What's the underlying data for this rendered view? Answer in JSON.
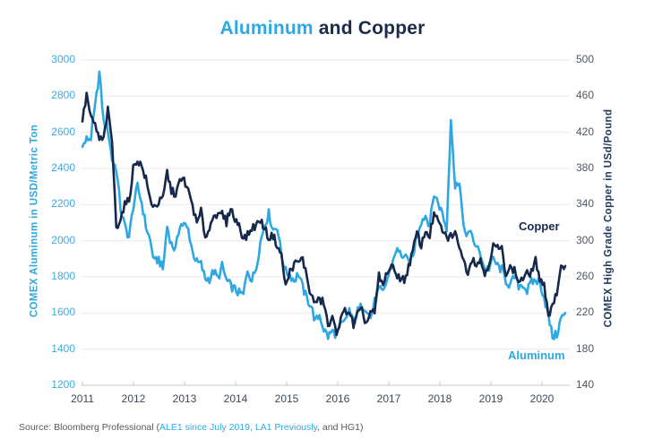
{
  "title": {
    "aluminum_part": "Aluminum",
    "rest_part": " and Copper"
  },
  "source": {
    "prefix": "Source: Bloomberg Professional (",
    "highlight": "ALE1 since July 2019, LA1 Previously",
    "suffix": ", and HG1)"
  },
  "colors": {
    "aluminum_blue": "#2FA8E1",
    "copper_navy": "#16294C",
    "title_navy": "#1B2B4D",
    "left_tick_blue": "#41A9E1",
    "right_tick_gray": "#4D5766",
    "year_tick_gray": "#3E4957",
    "gridline": "#E8E9EA",
    "axis_line": "#D2D4D6",
    "source_gray": "#58595B"
  },
  "chart_data": {
    "type": "line",
    "title": "Aluminum and Copper",
    "grid": "horizontal gridlines only, light gray",
    "legend_position": "inline annotations at right of plot (Copper upper, Aluminum lower)",
    "x_axis": {
      "tick_years": [
        2011,
        2012,
        2013,
        2014,
        2015,
        2016,
        2017,
        2018,
        2019,
        2020
      ],
      "start": "2011-01",
      "end": "2020-07",
      "interval": "monthly"
    },
    "left_axis": {
      "label": "COMEX Aluminum in USD/Metric Ton",
      "ticks": [
        3000,
        2800,
        2600,
        2400,
        2200,
        2000,
        1800,
        1600,
        1400,
        1200
      ],
      "range": [
        1200,
        3000
      ]
    },
    "right_axis": {
      "label": "COMEX High Grade Copper in USd/Pound",
      "ticks": [
        500,
        460,
        420,
        380,
        340,
        300,
        260,
        220,
        180,
        140
      ],
      "range": [
        140,
        500
      ]
    },
    "series": [
      {
        "name": "Aluminum",
        "axis": "left",
        "unit": "USD/Metric Ton",
        "color": "#2FA8E1",
        "values_monthly": [
          2520,
          2560,
          2570,
          2740,
          2930,
          2660,
          2620,
          2450,
          2400,
          2180,
          2080,
          2020,
          2190,
          2300,
          2210,
          2080,
          2000,
          1880,
          1900,
          1840,
          2080,
          1980,
          1950,
          2090,
          2090,
          2060,
          1940,
          1880,
          1870,
          1790,
          1790,
          1830,
          1790,
          1860,
          1780,
          1750,
          1730,
          1710,
          1700,
          1840,
          1780,
          1850,
          1990,
          2090,
          2150,
          2060,
          2080,
          1920,
          1830,
          1810,
          1780,
          1820,
          1740,
          1680,
          1640,
          1550,
          1590,
          1510,
          1470,
          1500,
          1480,
          1530,
          1550,
          1620,
          1540,
          1610,
          1640,
          1630,
          1570,
          1660,
          1730,
          1710,
          1790,
          1860,
          1950,
          1930,
          1910,
          1880,
          1910,
          2040,
          2110,
          2140,
          2090,
          2260,
          2210,
          2150,
          2060,
          2690,
          2290,
          2340,
          2060,
          2040,
          2030,
          1960,
          1930,
          1840,
          1850,
          1900,
          1860,
          1840,
          1780,
          1750,
          1800,
          1750,
          1760,
          1720,
          1770,
          1780,
          1770,
          1690,
          1580,
          1470,
          1480,
          1570,
          1600
        ]
      },
      {
        "name": "Copper",
        "axis": "right",
        "unit": "USd/Pound",
        "color": "#16294C",
        "values_monthly": [
          432,
          462,
          435,
          428,
          412,
          412,
          444,
          410,
          315,
          325,
          340,
          344,
          380,
          390,
          382,
          368,
          345,
          338,
          342,
          346,
          376,
          355,
          352,
          365,
          368,
          354,
          340,
          318,
          332,
          305,
          312,
          332,
          326,
          330,
          320,
          338,
          322,
          319,
          302,
          306,
          314,
          317,
          323,
          314,
          303,
          306,
          295,
          283,
          249,
          266,
          274,
          276,
          280,
          260,
          238,
          232,
          234,
          232,
          205,
          213,
          200,
          212,
          223,
          222,
          206,
          219,
          222,
          208,
          221,
          220,
          261,
          250,
          267,
          271,
          264,
          259,
          256,
          271,
          288,
          309,
          294,
          311,
          306,
          330,
          320,
          312,
          302,
          306,
          307,
          296,
          277,
          266,
          281,
          275,
          278,
          263,
          276,
          294,
          292,
          290,
          265,
          270,
          267,
          255,
          258,
          263,
          265,
          280,
          252,
          255,
          216,
          231,
          240,
          268,
          272
        ]
      }
    ]
  }
}
